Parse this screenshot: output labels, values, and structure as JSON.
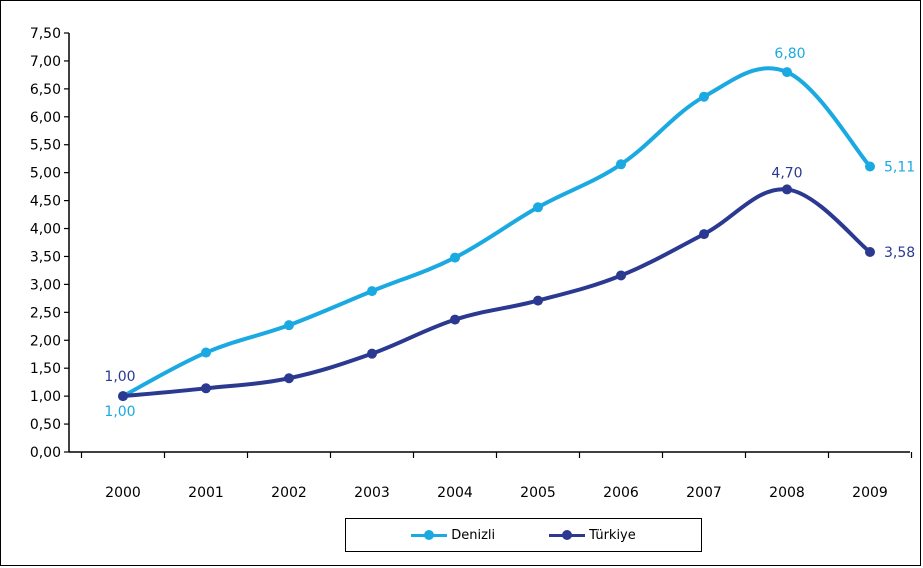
{
  "chart_data": {
    "type": "line",
    "categories": [
      "2000",
      "2001",
      "2002",
      "2003",
      "2004",
      "2005",
      "2006",
      "2007",
      "2008",
      "2009"
    ],
    "series": [
      {
        "name": "Denizli",
        "color": "#1aa9e1",
        "values": [
          1.0,
          1.78,
          2.27,
          2.88,
          3.48,
          4.38,
          5.15,
          6.36,
          6.8,
          5.11
        ],
        "data_labels": {
          "0": "1,00",
          "8": "6,80",
          "9": "5,11"
        }
      },
      {
        "name": "Türkiye",
        "color": "#2b3990",
        "values": [
          1.0,
          1.14,
          1.32,
          1.76,
          2.37,
          2.71,
          3.16,
          3.9,
          4.7,
          3.58
        ],
        "data_labels": {
          "0": "1,00",
          "8": "4,70",
          "9": "3,58"
        }
      }
    ],
    "yticks": [
      "0,00",
      "0,50",
      "1,00",
      "1,50",
      "2,00",
      "2,50",
      "3,00",
      "3,50",
      "4,00",
      "4,50",
      "5,00",
      "5,50",
      "6,00",
      "6,50",
      "7,00",
      "7,50"
    ],
    "ylim": [
      0,
      7.5
    ],
    "grid": false,
    "legend_position": "bottom"
  }
}
